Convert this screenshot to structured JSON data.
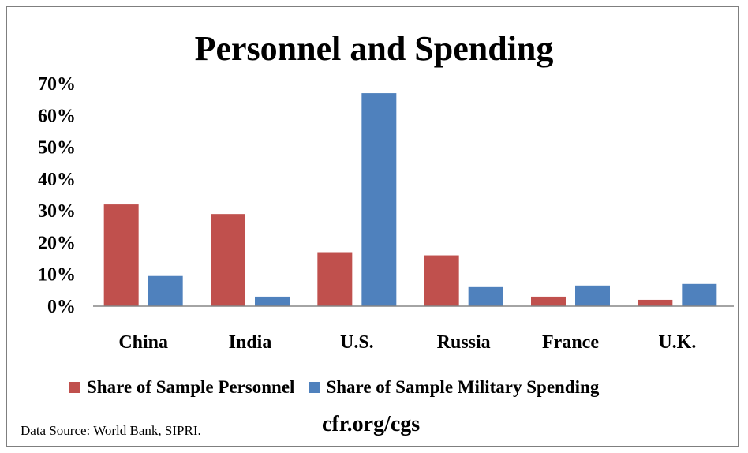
{
  "chart_data": {
    "type": "bar",
    "title": "Personnel and Spending",
    "categories": [
      "China",
      "India",
      "U.S.",
      "Russia",
      "France",
      "U.K."
    ],
    "series": [
      {
        "name": "Share of Sample Personnel",
        "color": "#c0504d",
        "values": [
          32,
          29,
          17,
          16,
          3,
          2
        ]
      },
      {
        "name": "Share of Sample Military Spending",
        "color": "#4f81bd",
        "values": [
          9.5,
          3,
          67,
          6,
          6.5,
          7
        ]
      }
    ],
    "ylim": [
      0,
      70
    ],
    "yticks": [
      "0%",
      "10%",
      "20%",
      "30%",
      "40%",
      "50%",
      "60%",
      "70%"
    ],
    "xlabel": "",
    "ylabel": "",
    "grid": false,
    "legend_position": "bottom"
  },
  "footer": {
    "source": "Data Source: World Bank, SIPRI.",
    "site": "cfr.org/cgs"
  }
}
